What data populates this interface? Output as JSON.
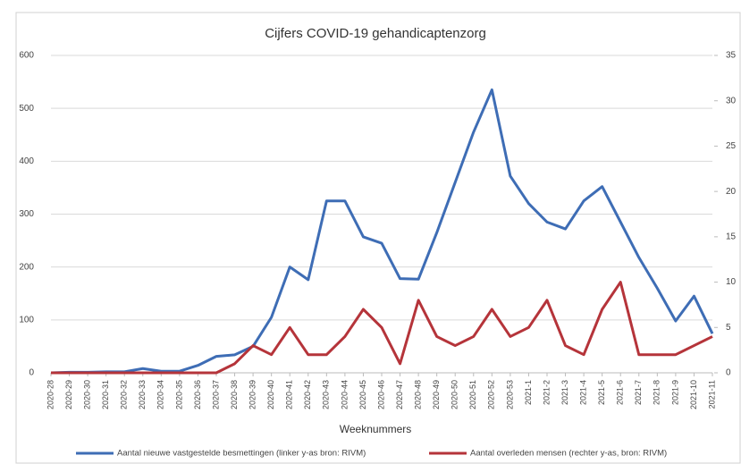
{
  "chart_data": {
    "type": "line",
    "title": "Cijfers COVID-19 gehandicaptenzorg",
    "x_label": "Weeknummers",
    "categories": [
      "2020-28",
      "2020-29",
      "2020-30",
      "2020-31",
      "2020-32",
      "2020-33",
      "2020-34",
      "2020-35",
      "2020-36",
      "2020-37",
      "2020-38",
      "2020-39",
      "2020-40",
      "2020-41",
      "2020-42",
      "2020-43",
      "2020-44",
      "2020-45",
      "2020-46",
      "2020-47",
      "2020-48",
      "2020-49",
      "2020-50",
      "2020-51",
      "2020-52",
      "2020-53",
      "2021-1",
      "2021-2",
      "2021-3",
      "2021-4",
      "2021-5",
      "2021-6",
      "2021-7",
      "2021-8",
      "2021-9",
      "2021-10",
      "2021-11"
    ],
    "series": [
      {
        "name": "Aantal nieuwe vastgestelde besmettingen (linker y-as bron: RIVM)",
        "color": "#3e6db5",
        "axis": "y",
        "values": [
          0,
          1,
          1,
          2,
          2,
          8,
          3,
          3,
          14,
          31,
          34,
          50,
          105,
          200,
          176,
          325,
          325,
          257,
          245,
          178,
          177,
          265,
          360,
          455,
          535,
          372,
          320,
          285,
          272,
          325,
          352,
          285,
          218,
          160,
          98,
          145,
          74
        ]
      },
      {
        "name": "Aantal overleden mensen (rechter y-as, bron: RIVM)",
        "color": "#b5343a",
        "axis": "y2",
        "values": [
          0,
          0,
          0,
          0,
          0,
          0,
          0,
          0,
          0,
          0,
          1,
          3,
          2,
          5,
          2,
          2,
          4,
          7,
          5,
          1,
          8,
          4,
          3,
          4,
          7,
          4,
          5,
          8,
          3,
          2,
          7,
          10,
          2,
          2,
          2,
          3,
          4
        ]
      }
    ],
    "ylim": [
      0,
      600
    ],
    "yticks": [
      0,
      100,
      200,
      300,
      400,
      500,
      600
    ],
    "y2lim": [
      0,
      35
    ],
    "y2ticks": [
      0,
      5,
      10,
      15,
      20,
      25,
      30,
      35
    ],
    "grid": true
  }
}
